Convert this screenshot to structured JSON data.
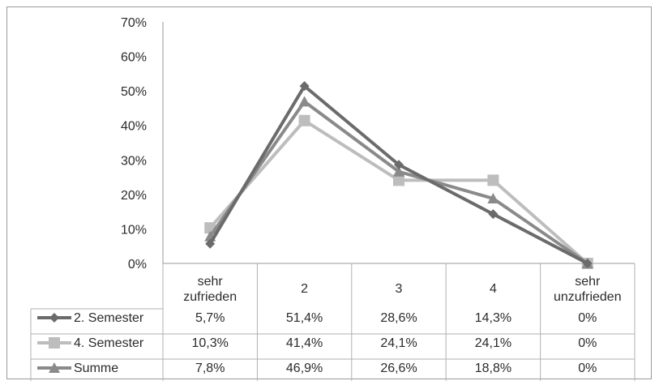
{
  "chart_data": {
    "type": "line",
    "categories": [
      [
        "sehr",
        "zufrieden"
      ],
      [
        "2"
      ],
      [
        "3"
      ],
      [
        "4"
      ],
      [
        "sehr",
        "unzufrieden"
      ]
    ],
    "series": [
      {
        "name": "2. Semester",
        "values": [
          5.7,
          51.4,
          28.6,
          14.3,
          0
        ],
        "labels": [
          "5,7%",
          "51,4%",
          "28,6%",
          "14,3%",
          "0%"
        ],
        "color": "#6b6b6b",
        "marker": "diamond"
      },
      {
        "name": "4. Semester",
        "values": [
          10.3,
          41.4,
          24.1,
          24.1,
          0
        ],
        "labels": [
          "10,3%",
          "41,4%",
          "24,1%",
          "24,1%",
          "0%"
        ],
        "color": "#bdbdbd",
        "marker": "square"
      },
      {
        "name": "Summe",
        "values": [
          7.8,
          46.9,
          26.6,
          18.8,
          0
        ],
        "labels": [
          "7,8%",
          "46,9%",
          "26,6%",
          "18,8%",
          "0%"
        ],
        "color": "#8a8a8a",
        "marker": "triangle"
      }
    ],
    "ylim": [
      0,
      70
    ],
    "yticks": [
      "0%",
      "10%",
      "20%",
      "30%",
      "40%",
      "50%",
      "60%",
      "70%"
    ],
    "grid": false,
    "legend": "data-table"
  }
}
